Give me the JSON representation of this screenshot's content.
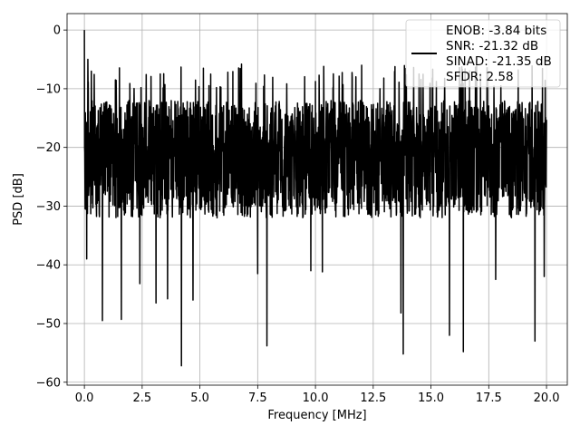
{
  "chart_data": {
    "type": "line",
    "title": "",
    "xlabel": "Frequency [MHz]",
    "ylabel": "PSD [dB]",
    "xlim": [
      -0.75,
      20.9
    ],
    "ylim": [
      -60.5,
      2.8
    ],
    "grid": true,
    "legend_position": "top-right",
    "xticks": [
      0.0,
      2.5,
      5.0,
      7.5,
      10.0,
      12.5,
      15.0,
      17.5,
      20.0
    ],
    "xtick_labels": [
      "0.0",
      "2.5",
      "5.0",
      "7.5",
      "10.0",
      "12.5",
      "15.0",
      "17.5",
      "20.0"
    ],
    "yticks": [
      0,
      -10,
      -20,
      -30,
      -40,
      -50,
      -60
    ],
    "ytick_labels": [
      "0",
      "−10",
      "−20",
      "−30",
      "−40",
      "−50",
      "−60"
    ],
    "legend": [
      "ENOB: -3.84 bits",
      "SNR: -21.32 dB",
      "SINAD: -21.35 dB",
      "SFDR: 2.58"
    ],
    "line_color": "#000000",
    "series": [
      {
        "x_range": [
          0.0,
          20.0
        ],
        "noise_envelope_db": {
          "upper": -10,
          "lower": -35
        },
        "peak_points": [
          {
            "x": 0.0,
            "y": 0.0
          },
          {
            "x": 0.05,
            "y": -17.5
          },
          {
            "x": 0.15,
            "y": -5.0
          },
          {
            "x": 0.3,
            "y": -7.0
          },
          {
            "x": 0.1,
            "y": -39.0
          },
          {
            "x": 0.78,
            "y": -49.5
          },
          {
            "x": 1.6,
            "y": -49.3
          },
          {
            "x": 2.4,
            "y": -43.2
          },
          {
            "x": 3.1,
            "y": -46.5
          },
          {
            "x": 3.6,
            "y": -45.8
          },
          {
            "x": 4.2,
            "y": -57.2
          },
          {
            "x": 4.7,
            "y": -46.0
          },
          {
            "x": 6.8,
            "y": -5.8
          },
          {
            "x": 7.5,
            "y": -41.5
          },
          {
            "x": 7.9,
            "y": -53.8
          },
          {
            "x": 9.8,
            "y": -41.0
          },
          {
            "x": 10.3,
            "y": -41.2
          },
          {
            "x": 12.0,
            "y": -6.0
          },
          {
            "x": 13.7,
            "y": -48.2
          },
          {
            "x": 13.8,
            "y": -55.2
          },
          {
            "x": 15.8,
            "y": -52.0
          },
          {
            "x": 16.4,
            "y": -54.8
          },
          {
            "x": 17.8,
            "y": -42.5
          },
          {
            "x": 19.5,
            "y": -53.0
          },
          {
            "x": 19.9,
            "y": -42.0
          }
        ]
      }
    ]
  }
}
